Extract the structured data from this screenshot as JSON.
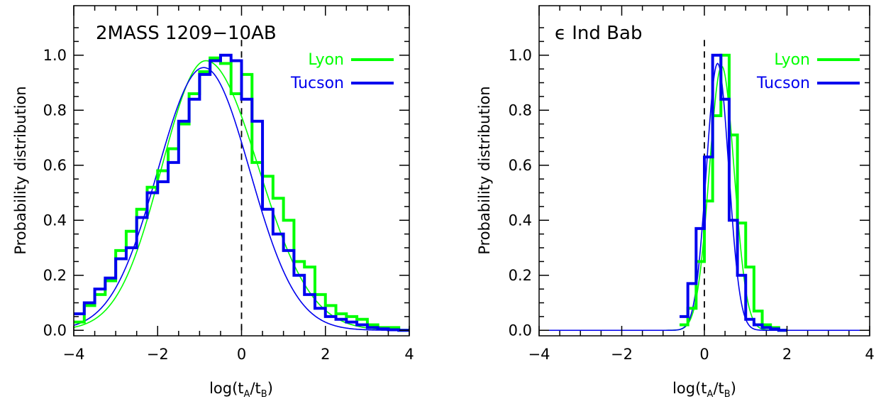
{
  "chart_data": [
    {
      "type": "line",
      "title": "2MASS 1209−10AB",
      "xlabel_main": "log(t",
      "xlabel_sub_a": "A",
      "xlabel_mid": "/t",
      "xlabel_sub_b": "B",
      "xlabel_end": ")",
      "ylabel": "Probability distribution",
      "xlim": [
        -4,
        4
      ],
      "ylim": [
        -0.02,
        1.18
      ],
      "xticks": [
        -4,
        -2,
        0,
        2,
        4
      ],
      "xtick_labels": [
        "−4",
        "−2",
        "0",
        "2",
        "4"
      ],
      "yticks": [
        0.0,
        0.2,
        0.4,
        0.6,
        0.8,
        1.0
      ],
      "ytick_labels": [
        "0.0",
        "0.2",
        "0.4",
        "0.6",
        "0.8",
        "1.0"
      ],
      "vline_x": 0,
      "legend_position": "top-right",
      "series": [
        {
          "name": "Lyon",
          "color": "#00ff00",
          "kind": "histogram",
          "bin_width": 0.25,
          "x": [
            -4.0,
            -3.75,
            -3.5,
            -3.25,
            -3.0,
            -2.75,
            -2.5,
            -2.25,
            -2.0,
            -1.75,
            -1.5,
            -1.25,
            -1.0,
            -0.75,
            -0.5,
            -0.25,
            0.0,
            0.25,
            0.5,
            0.75,
            1.0,
            1.25,
            1.5,
            1.75,
            2.0,
            2.25,
            2.5,
            2.75,
            3.0,
            3.25,
            3.5,
            3.75
          ],
          "values": [
            0.03,
            0.09,
            0.13,
            0.18,
            0.29,
            0.36,
            0.44,
            0.52,
            0.58,
            0.66,
            0.75,
            0.86,
            0.94,
            0.99,
            0.97,
            0.86,
            0.93,
            0.61,
            0.56,
            0.48,
            0.4,
            0.25,
            0.23,
            0.13,
            0.09,
            0.06,
            0.05,
            0.04,
            0.02,
            0.01,
            0.01,
            0.0
          ]
        },
        {
          "name": "Tucson",
          "color": "#0000ee",
          "kind": "histogram",
          "bin_width": 0.25,
          "x": [
            -4.0,
            -3.75,
            -3.5,
            -3.25,
            -3.0,
            -2.75,
            -2.5,
            -2.25,
            -2.0,
            -1.75,
            -1.5,
            -1.25,
            -1.0,
            -0.75,
            -0.5,
            -0.25,
            0.0,
            0.25,
            0.5,
            0.75,
            1.0,
            1.25,
            1.5,
            1.75,
            2.0,
            2.25,
            2.5,
            2.75,
            3.0,
            3.25,
            3.5,
            3.75
          ],
          "values": [
            0.06,
            0.1,
            0.15,
            0.19,
            0.26,
            0.3,
            0.41,
            0.5,
            0.54,
            0.61,
            0.76,
            0.84,
            0.93,
            0.98,
            1.0,
            0.98,
            0.84,
            0.76,
            0.44,
            0.35,
            0.29,
            0.2,
            0.13,
            0.08,
            0.05,
            0.04,
            0.03,
            0.02,
            0.01,
            0.005,
            0.002,
            0.0
          ]
        },
        {
          "name": "Lyon fit",
          "color": "#00ff00",
          "kind": "curve",
          "peak_x": -0.85,
          "sigma_left": 1.05,
          "sigma_right": 1.25,
          "amplitude": 0.98
        },
        {
          "name": "Tucson fit",
          "color": "#0000ee",
          "kind": "curve",
          "peak_x": -0.9,
          "sigma_left": 1.1,
          "sigma_right": 1.1,
          "amplitude": 0.955
        }
      ]
    },
    {
      "type": "line",
      "title": "ϵ  Ind Bab",
      "xlabel_main": "log(t",
      "xlabel_sub_a": "A",
      "xlabel_mid": "/t",
      "xlabel_sub_b": "B",
      "xlabel_end": ")",
      "ylabel": "Probability distribution",
      "xlim": [
        -4,
        4
      ],
      "ylim": [
        -0.02,
        1.18
      ],
      "xticks": [
        -4,
        -2,
        0,
        2,
        4
      ],
      "xtick_labels": [
        "−4",
        "−2",
        "0",
        "2",
        "4"
      ],
      "yticks": [
        0.0,
        0.2,
        0.4,
        0.6,
        0.8,
        1.0
      ],
      "ytick_labels": [
        "0.0",
        "0.2",
        "0.4",
        "0.6",
        "0.8",
        "1.0"
      ],
      "vline_x": 0,
      "legend_position": "top-right",
      "series": [
        {
          "name": "Lyon",
          "color": "#00ff00",
          "kind": "histogram",
          "bin_width": 0.2,
          "x": [
            -0.6,
            -0.4,
            -0.2,
            0.0,
            0.2,
            0.4,
            0.6,
            0.8,
            1.0,
            1.2,
            1.4,
            1.6,
            1.8
          ],
          "values": [
            0.02,
            0.08,
            0.25,
            0.47,
            0.78,
            1.0,
            0.71,
            0.39,
            0.23,
            0.07,
            0.02,
            0.01,
            0.0
          ]
        },
        {
          "name": "Tucson",
          "color": "#0000ee",
          "kind": "histogram",
          "bin_width": 0.2,
          "x": [
            -0.6,
            -0.4,
            -0.2,
            0.0,
            0.2,
            0.4,
            0.6,
            0.8,
            1.0,
            1.2,
            1.4,
            1.6,
            1.8
          ],
          "values": [
            0.05,
            0.17,
            0.37,
            0.63,
            1.0,
            0.84,
            0.4,
            0.2,
            0.04,
            0.02,
            0.01,
            0.005,
            0.0
          ]
        },
        {
          "name": "Lyon fit",
          "color": "#00ff00",
          "kind": "curve",
          "peak_x": 0.42,
          "sigma_left": 0.3,
          "sigma_right": 0.3,
          "amplitude": 0.96
        },
        {
          "name": "Tucson fit",
          "color": "#0000ee",
          "kind": "curve",
          "peak_x": 0.32,
          "sigma_left": 0.27,
          "sigma_right": 0.27,
          "amplitude": 0.97
        }
      ]
    }
  ],
  "legend_labels": [
    "Lyon",
    "Tucson"
  ]
}
